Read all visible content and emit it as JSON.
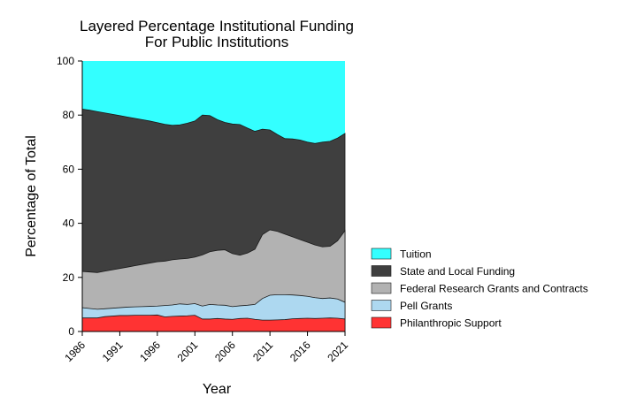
{
  "chart_data": {
    "type": "area",
    "stacked": true,
    "title": [
      "Layered Percentage Institutional Funding",
      "For Public Institutions"
    ],
    "xlabel": "Year",
    "ylabel": "Percentage of Total",
    "xlim": [
      1986,
      2021
    ],
    "ylim": [
      0,
      100
    ],
    "xticks": [
      1986,
      1991,
      1996,
      2001,
      2006,
      2011,
      2016,
      2021
    ],
    "yticks": [
      0,
      20,
      40,
      60,
      80,
      100
    ],
    "grid": false,
    "legend_position": "right",
    "x": [
      1986,
      1987,
      1988,
      1989,
      1990,
      1991,
      1992,
      1993,
      1994,
      1995,
      1996,
      1997,
      1998,
      1999,
      2000,
      2001,
      2002,
      2003,
      2004,
      2005,
      2006,
      2007,
      2008,
      2009,
      2010,
      2011,
      2012,
      2013,
      2014,
      2015,
      2016,
      2017,
      2018,
      2019,
      2020,
      2021
    ],
    "cumulative": {
      "Philanthropic Support": [
        5.0,
        5.0,
        5.0,
        5.5,
        5.7,
        5.9,
        5.9,
        6.0,
        6.0,
        6.0,
        6.1,
        5.4,
        5.6,
        5.7,
        5.8,
        6.0,
        4.6,
        4.6,
        4.8,
        4.6,
        4.5,
        4.8,
        4.9,
        4.5,
        4.2,
        4.2,
        4.3,
        4.4,
        4.7,
        4.8,
        4.9,
        4.8,
        4.9,
        5.0,
        4.9,
        4.6
      ],
      "Pell Grants": [
        8.8,
        8.5,
        8.2,
        8.4,
        8.6,
        8.8,
        9.0,
        9.1,
        9.2,
        9.3,
        9.4,
        9.6,
        9.8,
        10.2,
        10.0,
        10.3,
        9.4,
        10.0,
        9.8,
        9.7,
        9.2,
        9.5,
        9.7,
        10.0,
        12.2,
        13.4,
        13.6,
        13.6,
        13.5,
        13.3,
        13.0,
        12.5,
        12.2,
        12.4,
        12.0,
        10.8
      ],
      "Federal Research Grants and Contracts": [
        22.2,
        22.0,
        21.8,
        22.3,
        22.8,
        23.3,
        23.8,
        24.3,
        24.8,
        25.3,
        25.8,
        26.0,
        26.5,
        26.8,
        27.0,
        27.5,
        28.3,
        29.5,
        30.0,
        30.2,
        28.8,
        28.2,
        29.0,
        30.4,
        35.8,
        37.6,
        37.0,
        36.0,
        35.0,
        34.0,
        33.0,
        32.0,
        31.3,
        31.5,
        33.5,
        37.3
      ],
      "State and Local Funding": [
        82.2,
        81.8,
        81.3,
        80.8,
        80.3,
        79.8,
        79.3,
        78.8,
        78.3,
        77.8,
        77.2,
        76.6,
        76.2,
        76.4,
        77.0,
        77.8,
        80.0,
        79.8,
        78.3,
        77.3,
        76.7,
        76.5,
        75.2,
        74.0,
        74.8,
        74.5,
        72.8,
        71.3,
        71.2,
        70.8,
        70.0,
        69.5,
        70.0,
        70.3,
        71.5,
        73.2
      ],
      "Tuition": [
        100,
        100,
        100,
        100,
        100,
        100,
        100,
        100,
        100,
        100,
        100,
        100,
        100,
        100,
        100,
        100,
        100,
        100,
        100,
        100,
        100,
        100,
        100,
        100,
        100,
        100,
        100,
        100,
        100,
        100,
        100,
        100,
        100,
        100,
        100,
        100
      ]
    },
    "series_order_bottom_to_top": [
      "Philanthropic Support",
      "Pell Grants",
      "Federal Research Grants and Contracts",
      "State and Local Funding",
      "Tuition"
    ],
    "legend_order": [
      "Tuition",
      "State and Local Funding",
      "Federal Research Grants and Contracts",
      "Pell Grants",
      "Philanthropic Support"
    ],
    "colors": {
      "Tuition": "#33ffff",
      "State and Local Funding": "#3f3f3f",
      "Federal Research Grants and Contracts": "#b2b2b2",
      "Pell Grants": "#add8f0",
      "Philanthropic Support": "#ff3333"
    }
  }
}
